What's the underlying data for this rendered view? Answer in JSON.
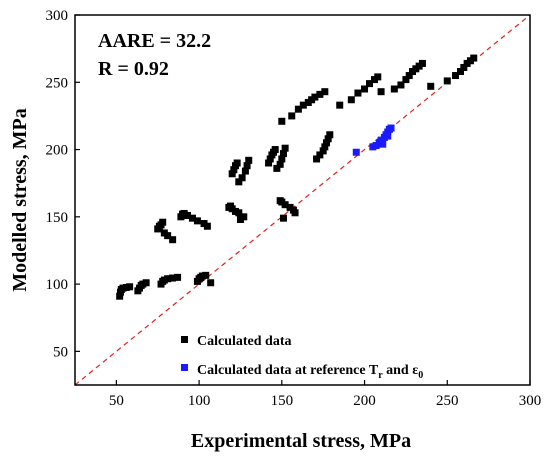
{
  "chart_data": {
    "type": "scatter",
    "xlabel": "Experimental stress, MPa",
    "ylabel": "Modelled stress, MPa",
    "xlim": [
      25,
      300
    ],
    "ylim": [
      25,
      300
    ],
    "xticks": [
      50,
      100,
      150,
      200,
      250,
      300
    ],
    "yticks": [
      50,
      100,
      150,
      200,
      250,
      300
    ],
    "grid": false,
    "legend_position": "bottom-right",
    "annotations": [
      "AARE = 32.2",
      "R = 0.92"
    ],
    "reference_line": {
      "style": "dashed",
      "color": "#e02020",
      "from": [
        25,
        25
      ],
      "to": [
        300,
        300
      ]
    },
    "series": [
      {
        "name": "Calculated data",
        "color": "#000000",
        "marker": "square",
        "points": [
          [
            52,
            91
          ],
          [
            52.5,
            94
          ],
          [
            53,
            96
          ],
          [
            54,
            97
          ],
          [
            56,
            97.5
          ],
          [
            58,
            98
          ],
          [
            63,
            95
          ],
          [
            64,
            97
          ],
          [
            65,
            99
          ],
          [
            66,
            100
          ],
          [
            68,
            101
          ],
          [
            77,
            100
          ],
          [
            78,
            102
          ],
          [
            79,
            103
          ],
          [
            81,
            104
          ],
          [
            84,
            104.5
          ],
          [
            87,
            105
          ],
          [
            99,
            102
          ],
          [
            100,
            104
          ],
          [
            101,
            105
          ],
          [
            102,
            106
          ],
          [
            104,
            106.5
          ],
          [
            107,
            101
          ],
          [
            75,
            141
          ],
          [
            76,
            143
          ],
          [
            77,
            144
          ],
          [
            78,
            146
          ],
          [
            79,
            138
          ],
          [
            81,
            136
          ],
          [
            84,
            133
          ],
          [
            89,
            150
          ],
          [
            90,
            152
          ],
          [
            91,
            152.5
          ],
          [
            93,
            151
          ],
          [
            96,
            149
          ],
          [
            99,
            147
          ],
          [
            103,
            145
          ],
          [
            105,
            143
          ],
          [
            118,
            157
          ],
          [
            119,
            158
          ],
          [
            120,
            156
          ],
          [
            122,
            154
          ],
          [
            124,
            153
          ],
          [
            125,
            148
          ],
          [
            127,
            150
          ],
          [
            149,
            162
          ],
          [
            150,
            161
          ],
          [
            152,
            159
          ],
          [
            155,
            157
          ],
          [
            157,
            155
          ],
          [
            158,
            153
          ],
          [
            151,
            149
          ],
          [
            120,
            182
          ],
          [
            121,
            185
          ],
          [
            122,
            188
          ],
          [
            123,
            190
          ],
          [
            124,
            176
          ],
          [
            126,
            179
          ],
          [
            128,
            184
          ],
          [
            129,
            188
          ],
          [
            130,
            192
          ],
          [
            142,
            190
          ],
          [
            143,
            193
          ],
          [
            144,
            196
          ],
          [
            145,
            198
          ],
          [
            146,
            200
          ],
          [
            147,
            186
          ],
          [
            149,
            189
          ],
          [
            150,
            193
          ],
          [
            151,
            197
          ],
          [
            152,
            201
          ],
          [
            171,
            193
          ],
          [
            173,
            196
          ],
          [
            175,
            199
          ],
          [
            176,
            202
          ],
          [
            177,
            205
          ],
          [
            178,
            208
          ],
          [
            179,
            211
          ],
          [
            150,
            221
          ],
          [
            156,
            225
          ],
          [
            160,
            230
          ],
          [
            163,
            233
          ],
          [
            166,
            235
          ],
          [
            168,
            237
          ],
          [
            170,
            239
          ],
          [
            173,
            241
          ],
          [
            176,
            243
          ],
          [
            185,
            233
          ],
          [
            192,
            237
          ],
          [
            196,
            242
          ],
          [
            200,
            245
          ],
          [
            203,
            249
          ],
          [
            206,
            252
          ],
          [
            208,
            254
          ],
          [
            210,
            243
          ],
          [
            218,
            245
          ],
          [
            222,
            248
          ],
          [
            225,
            252
          ],
          [
            227,
            255
          ],
          [
            229,
            258
          ],
          [
            231,
            260
          ],
          [
            233,
            262
          ],
          [
            235,
            264
          ],
          [
            240,
            247
          ],
          [
            250,
            251
          ],
          [
            255,
            255
          ],
          [
            258,
            258
          ],
          [
            260,
            261
          ],
          [
            262,
            264
          ],
          [
            264,
            266
          ],
          [
            266,
            268
          ]
        ]
      },
      {
        "name": "Calculated data at reference Tr and ε0",
        "color": "#1a1aff",
        "marker": "square",
        "points": [
          [
            195,
            198
          ],
          [
            205,
            202
          ],
          [
            207,
            203
          ],
          [
            209,
            205
          ],
          [
            210,
            207
          ],
          [
            212,
            209
          ],
          [
            213,
            211
          ],
          [
            214,
            213
          ],
          [
            215,
            215
          ],
          [
            216,
            216
          ],
          [
            214,
            210
          ],
          [
            211,
            204
          ]
        ]
      }
    ],
    "legend": [
      {
        "label": "Calculated data",
        "color": "#000000"
      },
      {
        "label_main": "Calculated data at reference T",
        "sub1": "r",
        "mid": " and ",
        "eps": "ε",
        "sub2": "0",
        "color": "#1a1aff"
      }
    ]
  }
}
